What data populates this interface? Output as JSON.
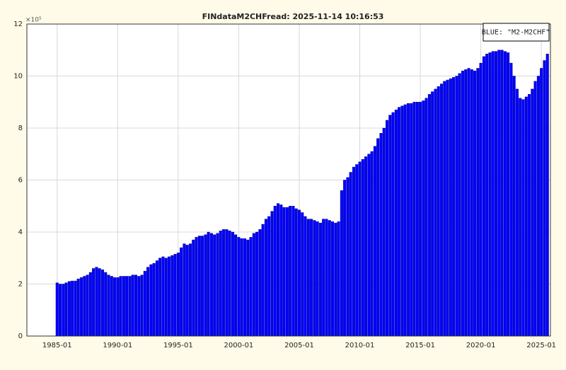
{
  "chart_data": {
    "type": "bar",
    "title": "FINdataM2CHFread: 2025-11-14 10:16:53",
    "y_exponent_label": "×10⁵",
    "x": [
      "1985-01",
      "1985-04",
      "1985-07",
      "1985-10",
      "1986-01",
      "1986-04",
      "1986-07",
      "1986-10",
      "1987-01",
      "1987-04",
      "1987-07",
      "1987-10",
      "1988-01",
      "1988-04",
      "1988-07",
      "1988-10",
      "1989-01",
      "1989-04",
      "1989-07",
      "1989-10",
      "1990-01",
      "1990-04",
      "1990-07",
      "1990-10",
      "1991-01",
      "1991-04",
      "1991-07",
      "1991-10",
      "1992-01",
      "1992-04",
      "1992-07",
      "1992-10",
      "1993-01",
      "1993-04",
      "1993-07",
      "1993-10",
      "1994-01",
      "1994-04",
      "1994-07",
      "1994-10",
      "1995-01",
      "1995-04",
      "1995-07",
      "1995-10",
      "1996-01",
      "1996-04",
      "1996-07",
      "1996-10",
      "1997-01",
      "1997-04",
      "1997-07",
      "1997-10",
      "1998-01",
      "1998-04",
      "1998-07",
      "1998-10",
      "1999-01",
      "1999-04",
      "1999-07",
      "1999-10",
      "2000-01",
      "2000-04",
      "2000-07",
      "2000-10",
      "2001-01",
      "2001-04",
      "2001-07",
      "2001-10",
      "2002-01",
      "2002-04",
      "2002-07",
      "2002-10",
      "2003-01",
      "2003-04",
      "2003-07",
      "2003-10",
      "2004-01",
      "2004-04",
      "2004-07",
      "2004-10",
      "2005-01",
      "2005-04",
      "2005-07",
      "2005-10",
      "2006-01",
      "2006-04",
      "2006-07",
      "2006-10",
      "2007-01",
      "2007-04",
      "2007-07",
      "2007-10",
      "2008-01",
      "2008-04",
      "2008-07",
      "2008-10",
      "2009-01",
      "2009-04",
      "2009-07",
      "2009-10",
      "2010-01",
      "2010-04",
      "2010-07",
      "2010-10",
      "2011-01",
      "2011-04",
      "2011-07",
      "2011-10",
      "2012-01",
      "2012-04",
      "2012-07",
      "2012-10",
      "2013-01",
      "2013-04",
      "2013-07",
      "2013-10",
      "2014-01",
      "2014-04",
      "2014-07",
      "2014-10",
      "2015-01",
      "2015-04",
      "2015-07",
      "2015-10",
      "2016-01",
      "2016-04",
      "2016-07",
      "2016-10",
      "2017-01",
      "2017-04",
      "2017-07",
      "2017-10",
      "2018-01",
      "2018-04",
      "2018-07",
      "2018-10",
      "2019-01",
      "2019-04",
      "2019-07",
      "2019-10",
      "2020-01",
      "2020-04",
      "2020-07",
      "2020-10",
      "2021-01",
      "2021-04",
      "2021-07",
      "2021-10",
      "2022-01",
      "2022-04",
      "2022-07",
      "2022-10",
      "2023-01",
      "2023-04",
      "2023-07",
      "2023-10",
      "2024-01",
      "2024-04",
      "2024-07",
      "2024-10",
      "2025-01",
      "2025-04",
      "2025-07"
    ],
    "series": [
      {
        "name": "BLUE: \"M2-M2CHF\"",
        "color": "#0000ff",
        "values": [
          205000,
          200000,
          200000,
          205000,
          210000,
          212000,
          212000,
          220000,
          225000,
          230000,
          235000,
          245000,
          260000,
          265000,
          260000,
          255000,
          245000,
          235000,
          230000,
          225000,
          225000,
          230000,
          230000,
          230000,
          230000,
          235000,
          235000,
          230000,
          235000,
          250000,
          265000,
          275000,
          280000,
          290000,
          300000,
          305000,
          300000,
          305000,
          310000,
          315000,
          320000,
          340000,
          355000,
          350000,
          355000,
          370000,
          380000,
          385000,
          385000,
          390000,
          400000,
          395000,
          390000,
          395000,
          405000,
          410000,
          410000,
          405000,
          400000,
          390000,
          380000,
          375000,
          375000,
          370000,
          380000,
          395000,
          400000,
          410000,
          430000,
          450000,
          460000,
          480000,
          500000,
          510000,
          505000,
          495000,
          495000,
          500000,
          500000,
          490000,
          485000,
          475000,
          460000,
          450000,
          450000,
          445000,
          440000,
          435000,
          450000,
          450000,
          445000,
          440000,
          435000,
          440000,
          560000,
          600000,
          610000,
          630000,
          650000,
          660000,
          670000,
          680000,
          690000,
          700000,
          710000,
          730000,
          760000,
          780000,
          800000,
          830000,
          850000,
          860000,
          870000,
          880000,
          885000,
          890000,
          895000,
          895000,
          900000,
          900000,
          900000,
          905000,
          915000,
          930000,
          940000,
          950000,
          960000,
          970000,
          980000,
          985000,
          990000,
          995000,
          1000000,
          1010000,
          1020000,
          1025000,
          1030000,
          1025000,
          1020000,
          1030000,
          1050000,
          1075000,
          1085000,
          1090000,
          1095000,
          1095000,
          1100000,
          1100000,
          1095000,
          1090000,
          1050000,
          1000000,
          950000,
          915000,
          910000,
          920000,
          930000,
          950000,
          980000,
          1000000,
          1030000,
          1060000,
          1085000
        ]
      }
    ],
    "xlim": [
      "1982-07",
      "2025-10"
    ],
    "xticks": [
      "1985-01",
      "1990-01",
      "1995-01",
      "2000-01",
      "2005-01",
      "2010-01",
      "2015-01",
      "2020-01",
      "2025-01"
    ],
    "ylim": [
      0,
      1200000
    ],
    "yticks": [
      0,
      {
        "value": 200000,
        "label": "2"
      },
      {
        "value": 400000,
        "label": "4"
      },
      {
        "value": 600000,
        "label": "6"
      },
      {
        "value": 800000,
        "label": "8"
      },
      {
        "value": 1000000,
        "label": "10"
      },
      {
        "value": 1200000,
        "label": "12"
      }
    ],
    "grid": true
  }
}
